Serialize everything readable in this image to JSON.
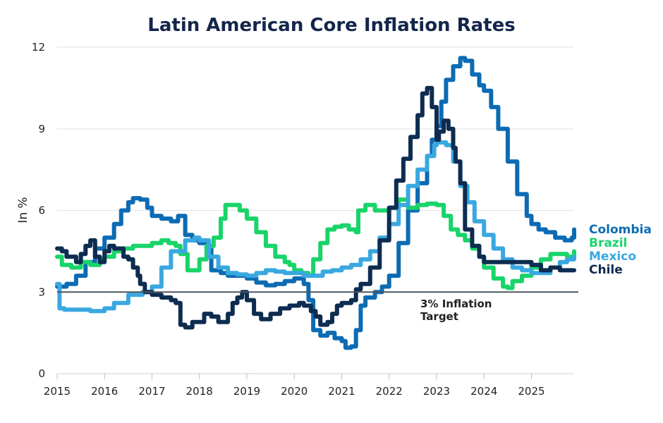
{
  "chart_data": {
    "type": "line",
    "title": "Latin American Core Inflation Rates",
    "xlabel": "",
    "ylabel": "In %",
    "xlim": [
      2015,
      2025.9
    ],
    "ylim": [
      0,
      12
    ],
    "yticks": [
      0,
      3,
      6,
      9,
      12
    ],
    "xticks": [
      2015,
      2016,
      2017,
      2018,
      2019,
      2020,
      2021,
      2022,
      2023,
      2024,
      2025
    ],
    "grid": true,
    "legend_position": "right",
    "reference_line": {
      "value": 3,
      "label_line1": "3% Inflation",
      "label_line2": "Target",
      "color": "#4d5660"
    },
    "series": [
      {
        "name": "Colombia",
        "color": "#0c6bb3",
        "x": [
          2015,
          2015.2,
          2015.4,
          2015.6,
          2015.8,
          2016,
          2016.2,
          2016.35,
          2016.5,
          2016.6,
          2016.75,
          2016.9,
          2017,
          2017.2,
          2017.4,
          2017.55,
          2017.7,
          2017.85,
          2018,
          2018.15,
          2018.25,
          2018.45,
          2018.6,
          2018.8,
          2019,
          2019.2,
          2019.4,
          2019.6,
          2019.8,
          2020,
          2020.2,
          2020.3,
          2020.4,
          2020.55,
          2020.7,
          2020.85,
          2021,
          2021.08,
          2021.2,
          2021.3,
          2021.4,
          2021.5,
          2021.7,
          2021.85,
          2022,
          2022.2,
          2022.4,
          2022.6,
          2022.8,
          2022.9,
          2023,
          2023.1,
          2023.2,
          2023.35,
          2023.5,
          2023.6,
          2023.75,
          2023.9,
          2024,
          2024.15,
          2024.3,
          2024.5,
          2024.7,
          2024.9,
          2025,
          2025.15,
          2025.3,
          2025.5,
          2025.7,
          2025.85,
          2025.9
        ],
        "values": [
          3.2,
          3.3,
          3.6,
          4.1,
          4.6,
          5.0,
          5.5,
          6.0,
          6.3,
          6.45,
          6.4,
          6.1,
          5.8,
          5.7,
          5.6,
          5.8,
          5.1,
          4.9,
          4.8,
          4.6,
          3.8,
          3.7,
          3.6,
          3.6,
          3.5,
          3.35,
          3.25,
          3.3,
          3.4,
          3.5,
          3.3,
          2.7,
          1.6,
          1.4,
          1.5,
          1.3,
          1.2,
          0.95,
          1.0,
          1.6,
          2.5,
          2.8,
          3.0,
          3.2,
          3.6,
          4.8,
          6.0,
          7.0,
          8.0,
          8.6,
          9.1,
          10.0,
          10.8,
          11.3,
          11.6,
          11.5,
          11.0,
          10.6,
          10.4,
          9.8,
          9.0,
          7.8,
          6.6,
          5.8,
          5.5,
          5.3,
          5.2,
          5.0,
          4.9,
          5.0,
          5.3
        ]
      },
      {
        "name": "Brazil",
        "color": "#19d46a",
        "x": [
          2015,
          2015.1,
          2015.3,
          2015.5,
          2015.7,
          2015.9,
          2016,
          2016.2,
          2016.4,
          2016.6,
          2016.8,
          2017,
          2017.2,
          2017.35,
          2017.5,
          2017.6,
          2017.75,
          2017.9,
          2018,
          2018.15,
          2018.3,
          2018.45,
          2018.55,
          2018.7,
          2018.85,
          2019,
          2019.2,
          2019.4,
          2019.6,
          2019.8,
          2019.9,
          2020,
          2020.15,
          2020.3,
          2020.4,
          2020.55,
          2020.7,
          2020.85,
          2021,
          2021.15,
          2021.3,
          2021.35,
          2021.5,
          2021.7,
          2021.9,
          2022,
          2022.2,
          2022.4,
          2022.6,
          2022.8,
          2023,
          2023.15,
          2023.3,
          2023.45,
          2023.6,
          2023.75,
          2023.9,
          2024,
          2024.2,
          2024.4,
          2024.5,
          2024.6,
          2024.8,
          2025,
          2025.2,
          2025.4,
          2025.6,
          2025.75,
          2025.9
        ],
        "values": [
          4.3,
          4.0,
          3.9,
          4.1,
          4.0,
          4.2,
          4.3,
          4.5,
          4.6,
          4.7,
          4.7,
          4.8,
          4.9,
          4.8,
          4.7,
          4.4,
          3.8,
          3.8,
          4.2,
          4.7,
          5.0,
          5.7,
          6.2,
          6.2,
          6.0,
          5.7,
          5.2,
          4.7,
          4.3,
          4.1,
          4.0,
          3.8,
          3.7,
          3.6,
          4.2,
          4.8,
          5.3,
          5.4,
          5.45,
          5.3,
          5.2,
          6.0,
          6.2,
          6.0,
          6.0,
          6.1,
          6.4,
          6.1,
          6.2,
          6.25,
          6.2,
          5.8,
          5.3,
          5.1,
          4.9,
          4.6,
          4.3,
          3.9,
          3.5,
          3.2,
          3.15,
          3.4,
          3.6,
          3.9,
          4.2,
          4.4,
          4.4,
          4.3,
          4.5
        ]
      },
      {
        "name": "Mexico",
        "color": "#3aa8e0",
        "x": [
          2015,
          2015.05,
          2015.15,
          2015.4,
          2015.7,
          2016,
          2016.2,
          2016.5,
          2016.8,
          2017,
          2017.2,
          2017.4,
          2017.7,
          2017.9,
          2018,
          2018.2,
          2018.4,
          2018.6,
          2018.8,
          2019,
          2019.2,
          2019.4,
          2019.6,
          2019.8,
          2020,
          2020.2,
          2020.4,
          2020.6,
          2020.8,
          2021,
          2021.2,
          2021.4,
          2021.6,
          2021.8,
          2022,
          2022.2,
          2022.4,
          2022.6,
          2022.8,
          2022.95,
          2023,
          2023.2,
          2023.35,
          2023.5,
          2023.65,
          2023.8,
          2024,
          2024.2,
          2024.4,
          2024.6,
          2024.8,
          2025,
          2025.2,
          2025.4,
          2025.6,
          2025.75,
          2025.9
        ],
        "values": [
          3.3,
          2.4,
          2.35,
          2.35,
          2.3,
          2.4,
          2.6,
          2.9,
          3.0,
          3.2,
          3.9,
          4.5,
          4.9,
          5.0,
          4.9,
          4.3,
          3.9,
          3.7,
          3.65,
          3.6,
          3.7,
          3.8,
          3.75,
          3.7,
          3.7,
          3.6,
          3.6,
          3.75,
          3.8,
          3.9,
          4.0,
          4.2,
          4.5,
          5.0,
          5.5,
          6.2,
          6.9,
          7.5,
          8.0,
          8.4,
          8.5,
          8.4,
          7.8,
          6.9,
          6.3,
          5.6,
          5.1,
          4.6,
          4.2,
          3.9,
          3.8,
          3.7,
          3.7,
          3.9,
          4.1,
          4.2,
          4.3
        ]
      },
      {
        "name": "Chile",
        "color": "#0d2c50",
        "x": [
          2015,
          2015.1,
          2015.2,
          2015.4,
          2015.5,
          2015.6,
          2015.7,
          2015.8,
          2015.9,
          2016,
          2016.1,
          2016.2,
          2016.4,
          2016.5,
          2016.6,
          2016.7,
          2016.75,
          2016.85,
          2017,
          2017.2,
          2017.4,
          2017.5,
          2017.6,
          2017.7,
          2017.85,
          2018,
          2018.1,
          2018.25,
          2018.4,
          2018.6,
          2018.7,
          2018.8,
          2018.9,
          2019,
          2019.15,
          2019.3,
          2019.5,
          2019.7,
          2019.9,
          2020,
          2020.1,
          2020.2,
          2020.35,
          2020.45,
          2020.55,
          2020.7,
          2020.8,
          2020.9,
          2021,
          2021.2,
          2021.3,
          2021.4,
          2021.6,
          2021.8,
          2022,
          2022.15,
          2022.3,
          2022.45,
          2022.6,
          2022.7,
          2022.8,
          2022.9,
          2023,
          2023.05,
          2023.15,
          2023.25,
          2023.35,
          2023.4,
          2023.5,
          2023.6,
          2023.75,
          2023.9,
          2024,
          2024.2,
          2024.4,
          2024.6,
          2024.8,
          2025,
          2025.2,
          2025.4,
          2025.6,
          2025.8,
          2025.9
        ],
        "values": [
          4.6,
          4.5,
          4.3,
          4.1,
          4.4,
          4.7,
          4.9,
          4.3,
          4.1,
          4.5,
          4.7,
          4.6,
          4.3,
          4.2,
          3.9,
          3.6,
          3.3,
          3.0,
          2.9,
          2.8,
          2.7,
          2.6,
          1.8,
          1.7,
          1.9,
          1.9,
          2.2,
          2.1,
          1.9,
          2.2,
          2.6,
          2.8,
          3.0,
          2.7,
          2.2,
          2.0,
          2.2,
          2.4,
          2.5,
          2.5,
          2.6,
          2.5,
          2.3,
          2.1,
          1.8,
          1.9,
          2.2,
          2.5,
          2.6,
          2.7,
          3.1,
          3.3,
          3.9,
          4.9,
          6.1,
          7.1,
          7.9,
          8.7,
          9.5,
          10.3,
          10.5,
          9.8,
          8.6,
          8.9,
          9.3,
          9.0,
          8.3,
          7.8,
          7.0,
          5.3,
          4.7,
          4.3,
          4.1,
          4.1,
          4.1,
          4.1,
          4.1,
          4.0,
          3.8,
          3.9,
          3.8,
          3.8,
          3.8
        ]
      }
    ]
  }
}
